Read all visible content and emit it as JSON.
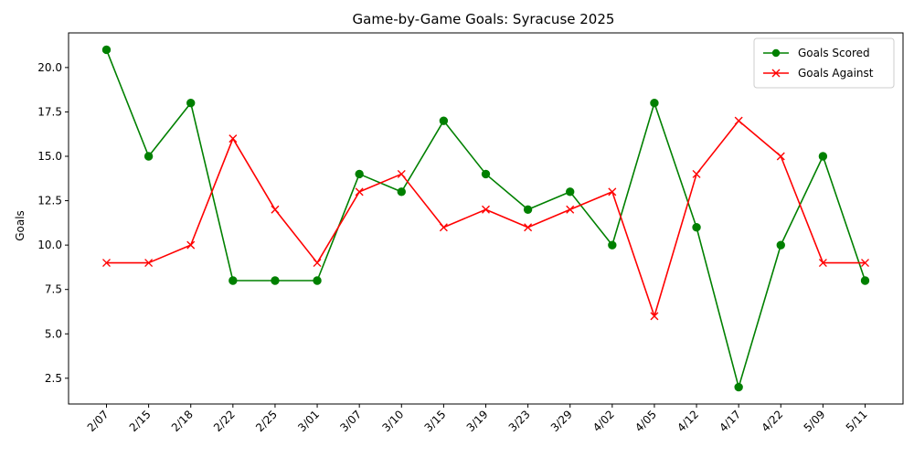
{
  "chart_data": {
    "type": "line",
    "title": "Game-by-Game Goals: Syracuse 2025",
    "xlabel": "",
    "ylabel": "Goals",
    "categories": [
      "2/07",
      "2/15",
      "2/18",
      "2/22",
      "2/25",
      "3/01",
      "3/07",
      "3/10",
      "3/15",
      "3/19",
      "3/23",
      "3/29",
      "4/02",
      "4/05",
      "4/12",
      "4/17",
      "4/22",
      "5/09",
      "5/11"
    ],
    "series": [
      {
        "name": "Goals Scored",
        "color": "#008000",
        "marker": "circle",
        "values": [
          21,
          15,
          18,
          8,
          8,
          8,
          14,
          13,
          17,
          14,
          12,
          13,
          10,
          18,
          11,
          2,
          10,
          15,
          8
        ]
      },
      {
        "name": "Goals Against",
        "color": "#ff0000",
        "marker": "x",
        "values": [
          9,
          9,
          10,
          16,
          12,
          9,
          13,
          14,
          11,
          12,
          11,
          12,
          13,
          6,
          14,
          17,
          15,
          9,
          9
        ]
      }
    ],
    "yticks": [
      "2.5",
      "5.0",
      "7.5",
      "10.0",
      "12.5",
      "15.0",
      "17.5",
      "20.0"
    ],
    "ylim": [
      1.05,
      21.95
    ],
    "grid": false,
    "legend_position": "top-right"
  }
}
